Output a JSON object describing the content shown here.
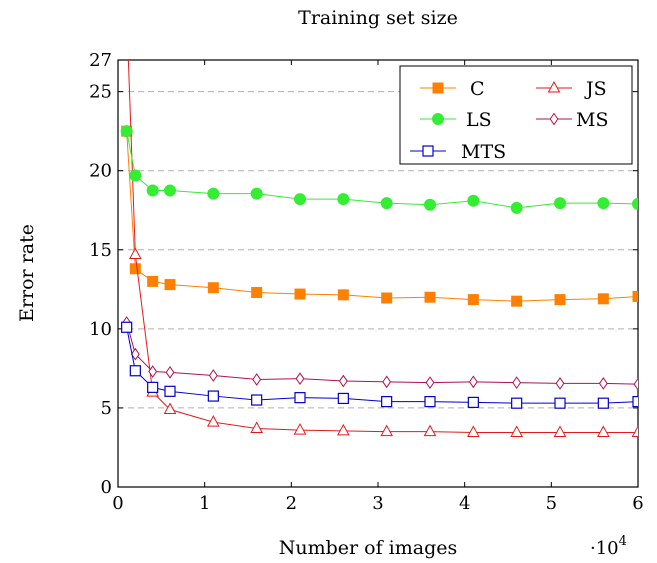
{
  "chart_data": {
    "type": "line",
    "title": "Training set size",
    "xlabel": "Number of images",
    "ylabel": "Error rate",
    "x_multiplier_label": "·10",
    "x_multiplier_exponent": "4",
    "xlim": [
      0,
      6
    ],
    "ylim": [
      0,
      27
    ],
    "xticks": [
      0,
      1,
      2,
      3,
      4,
      5,
      6
    ],
    "yticks": [
      0,
      5,
      10,
      15,
      20,
      25,
      27
    ],
    "ygrid": [
      5,
      10,
      15,
      20,
      25
    ],
    "grid": "horizontal-dashed",
    "legend_position": "top-right",
    "x": [
      0.1,
      0.2,
      0.4,
      0.6,
      1.1,
      1.6,
      2.1,
      2.6,
      3.1,
      3.6,
      4.1,
      4.6,
      5.1,
      5.6,
      6.0
    ],
    "series": [
      {
        "name": "C",
        "color": "#ff8000",
        "marker": "square-filled",
        "values": [
          22.5,
          13.8,
          13.0,
          12.8,
          12.6,
          12.3,
          12.2,
          12.15,
          11.95,
          12.0,
          11.85,
          11.75,
          11.85,
          11.9,
          12.05
        ]
      },
      {
        "name": "JS",
        "color": "#e31a1c",
        "marker": "triangle-open",
        "values": [
          30,
          14.7,
          6.0,
          4.9,
          4.1,
          3.7,
          3.6,
          3.55,
          3.5,
          3.5,
          3.45,
          3.45,
          3.45,
          3.45,
          3.45
        ]
      },
      {
        "name": "LS",
        "color": "#33ee33",
        "marker": "circle-filled",
        "values": [
          22.5,
          19.7,
          18.75,
          18.75,
          18.55,
          18.55,
          18.2,
          18.2,
          17.95,
          17.85,
          18.1,
          17.65,
          17.95,
          17.95,
          17.9
        ]
      },
      {
        "name": "MS",
        "color": "#b0124e",
        "marker": "diamond-open",
        "values": [
          10.4,
          8.4,
          7.3,
          7.25,
          7.05,
          6.8,
          6.85,
          6.7,
          6.65,
          6.6,
          6.65,
          6.6,
          6.55,
          6.55,
          6.5
        ]
      },
      {
        "name": "MTS",
        "color": "#0000cc",
        "marker": "square-open",
        "values": [
          10.1,
          7.35,
          6.3,
          6.05,
          5.75,
          5.5,
          5.65,
          5.6,
          5.4,
          5.4,
          5.35,
          5.3,
          5.3,
          5.3,
          5.4
        ]
      }
    ]
  }
}
